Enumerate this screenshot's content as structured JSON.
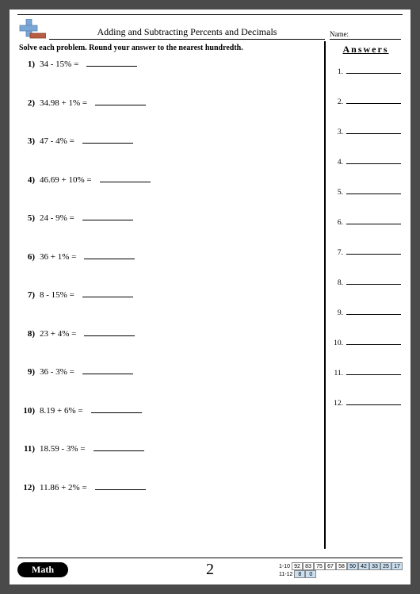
{
  "header": {
    "title": "Adding and Subtracting Percents and Decimals",
    "name_label": "Name:",
    "instruction": "Solve each problem. Round your answer to the nearest hundredth.",
    "answers_title": "Answers"
  },
  "problems": [
    {
      "n": "1)",
      "expr": "34 - 15% ="
    },
    {
      "n": "2)",
      "expr": "34.98 + 1% ="
    },
    {
      "n": "3)",
      "expr": "47 - 4% ="
    },
    {
      "n": "4)",
      "expr": "46.69 + 10% ="
    },
    {
      "n": "5)",
      "expr": "24 - 9% ="
    },
    {
      "n": "6)",
      "expr": "36 + 1% ="
    },
    {
      "n": "7)",
      "expr": "8 - 15% ="
    },
    {
      "n": "8)",
      "expr": "23 + 4% ="
    },
    {
      "n": "9)",
      "expr": "36 - 3% ="
    },
    {
      "n": "10)",
      "expr": "8.19 + 6% ="
    },
    {
      "n": "11)",
      "expr": "18.59 - 3% ="
    },
    {
      "n": "12)",
      "expr": "11.86 + 2% ="
    }
  ],
  "answers": [
    {
      "n": "1."
    },
    {
      "n": "2."
    },
    {
      "n": "3."
    },
    {
      "n": "4."
    },
    {
      "n": "5."
    },
    {
      "n": "6."
    },
    {
      "n": "7."
    },
    {
      "n": "8."
    },
    {
      "n": "9."
    },
    {
      "n": "10."
    },
    {
      "n": "11."
    },
    {
      "n": "12."
    }
  ],
  "footer": {
    "brand": "Math",
    "page_number": "2",
    "score": {
      "row1_label": "1-10",
      "row2_label": "11-12",
      "row1": [
        {
          "v": "92",
          "blue": false
        },
        {
          "v": "83",
          "blue": false
        },
        {
          "v": "75",
          "blue": false
        },
        {
          "v": "67",
          "blue": false
        },
        {
          "v": "58",
          "blue": false
        },
        {
          "v": "50",
          "blue": true
        },
        {
          "v": "42",
          "blue": true
        },
        {
          "v": "33",
          "blue": true
        },
        {
          "v": "25",
          "blue": true
        },
        {
          "v": "17",
          "blue": true
        }
      ],
      "row2": [
        {
          "v": "8",
          "blue": true
        },
        {
          "v": "0",
          "blue": true
        }
      ]
    }
  },
  "logo": {
    "plus_v": "#7aa7d8",
    "plus_h": "#7aa7d8",
    "plus_border": "#5a84b2",
    "minus": "#b85c44"
  }
}
